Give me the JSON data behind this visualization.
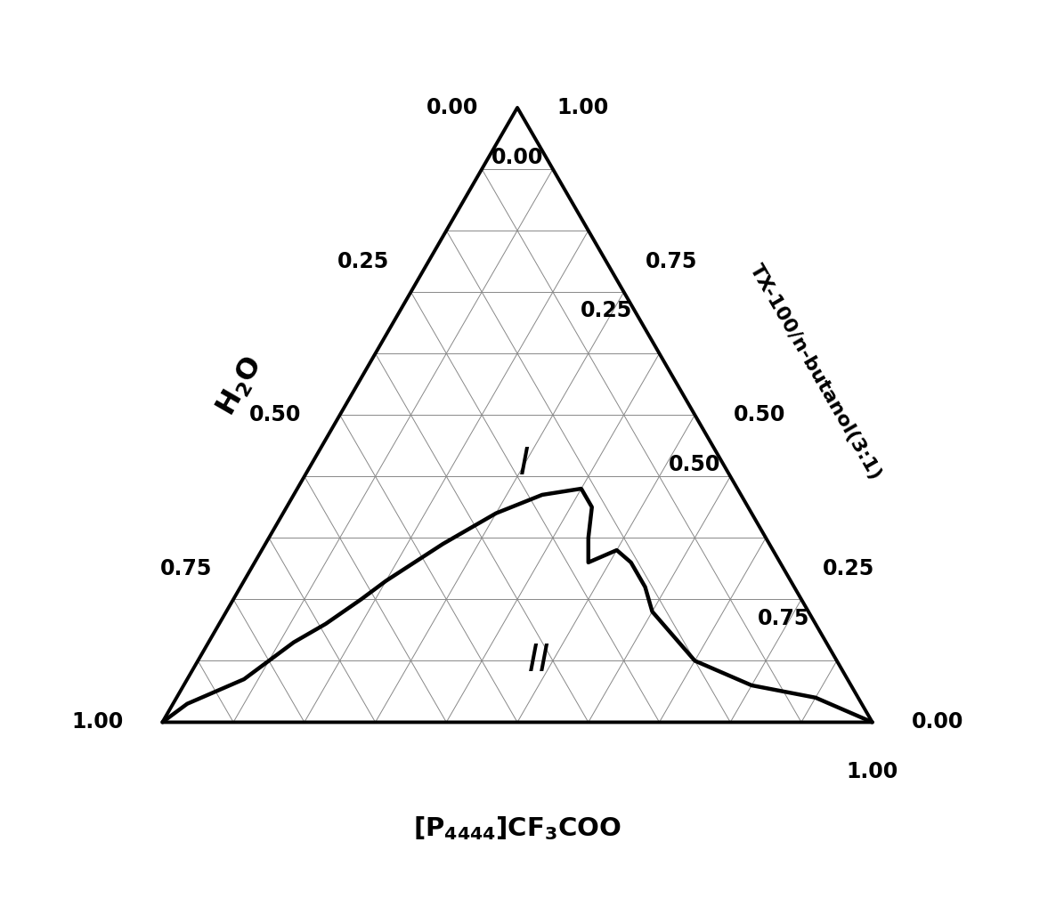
{
  "grid_color": "#888888",
  "grid_lw": 0.7,
  "border_lw": 2.8,
  "curve_lw": 3.2,
  "curve_color": "#000000",
  "tick_fontsize": 17,
  "region_fontsize": 30,
  "label_fontsize": 20,
  "tick_values": [
    0.0,
    0.25,
    0.5,
    0.75,
    1.0
  ],
  "curve_points": [
    [
      0.0,
      0.0,
      1.0
    ],
    [
      0.02,
      0.03,
      0.95
    ],
    [
      0.05,
      0.05,
      0.9
    ],
    [
      0.08,
      0.07,
      0.85
    ],
    [
      0.1,
      0.1,
      0.8
    ],
    [
      0.12,
      0.13,
      0.75
    ],
    [
      0.15,
      0.16,
      0.69
    ],
    [
      0.18,
      0.2,
      0.62
    ],
    [
      0.2,
      0.23,
      0.57
    ],
    [
      0.25,
      0.29,
      0.46
    ],
    [
      0.3,
      0.34,
      0.36
    ],
    [
      0.35,
      0.37,
      0.28
    ],
    [
      0.4,
      0.38,
      0.22
    ],
    [
      0.43,
      0.35,
      0.22
    ],
    [
      0.45,
      0.3,
      0.25
    ],
    [
      0.47,
      0.26,
      0.27
    ],
    [
      0.5,
      0.28,
      0.22
    ],
    [
      0.53,
      0.26,
      0.21
    ],
    [
      0.57,
      0.22,
      0.21
    ],
    [
      0.6,
      0.18,
      0.22
    ],
    [
      0.65,
      0.14,
      0.21
    ],
    [
      0.7,
      0.1,
      0.2
    ],
    [
      0.75,
      0.08,
      0.17
    ],
    [
      0.8,
      0.06,
      0.14
    ],
    [
      0.85,
      0.05,
      0.1
    ],
    [
      0.9,
      0.04,
      0.06
    ],
    [
      0.95,
      0.02,
      0.03
    ],
    [
      1.0,
      0.0,
      0.0
    ]
  ],
  "region_I_ternary": [
    0.3,
    0.42,
    0.28
  ],
  "region_II_ternary": [
    0.48,
    0.1,
    0.42
  ]
}
